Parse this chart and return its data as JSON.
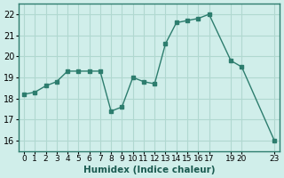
{
  "x": [
    0,
    1,
    2,
    3,
    4,
    5,
    6,
    7,
    8,
    9,
    10,
    11,
    12,
    13,
    14,
    15,
    16,
    17,
    19,
    20,
    23
  ],
  "y": [
    18.2,
    18.3,
    18.6,
    18.8,
    19.3,
    19.3,
    19.3,
    19.3,
    17.4,
    17.6,
    19.0,
    18.8,
    18.7,
    20.6,
    21.6,
    21.7,
    21.8,
    22.0,
    19.8,
    19.5,
    16.0
  ],
  "line_color": "#2d7d6e",
  "marker_color": "#2d7d6e",
  "bg_color": "#d0eeea",
  "grid_color": "#b0d8d0",
  "xlabel": "Humidex (Indice chaleur)",
  "xlim": [
    -0.5,
    23.5
  ],
  "ylim": [
    15.5,
    22.5
  ],
  "yticks": [
    16,
    17,
    18,
    19,
    20,
    21,
    22
  ],
  "xticks": [
    0,
    1,
    2,
    3,
    4,
    5,
    6,
    7,
    8,
    9,
    10,
    11,
    12,
    13,
    14,
    15,
    16,
    17,
    19,
    20,
    23
  ],
  "xtick_labels": [
    "0",
    "1",
    "2",
    "3",
    "4",
    "5",
    "6",
    "7",
    "8",
    "9",
    "10",
    "11",
    "12",
    "13",
    "14",
    "15",
    "16",
    "17",
    "19",
    "20",
    "23"
  ]
}
